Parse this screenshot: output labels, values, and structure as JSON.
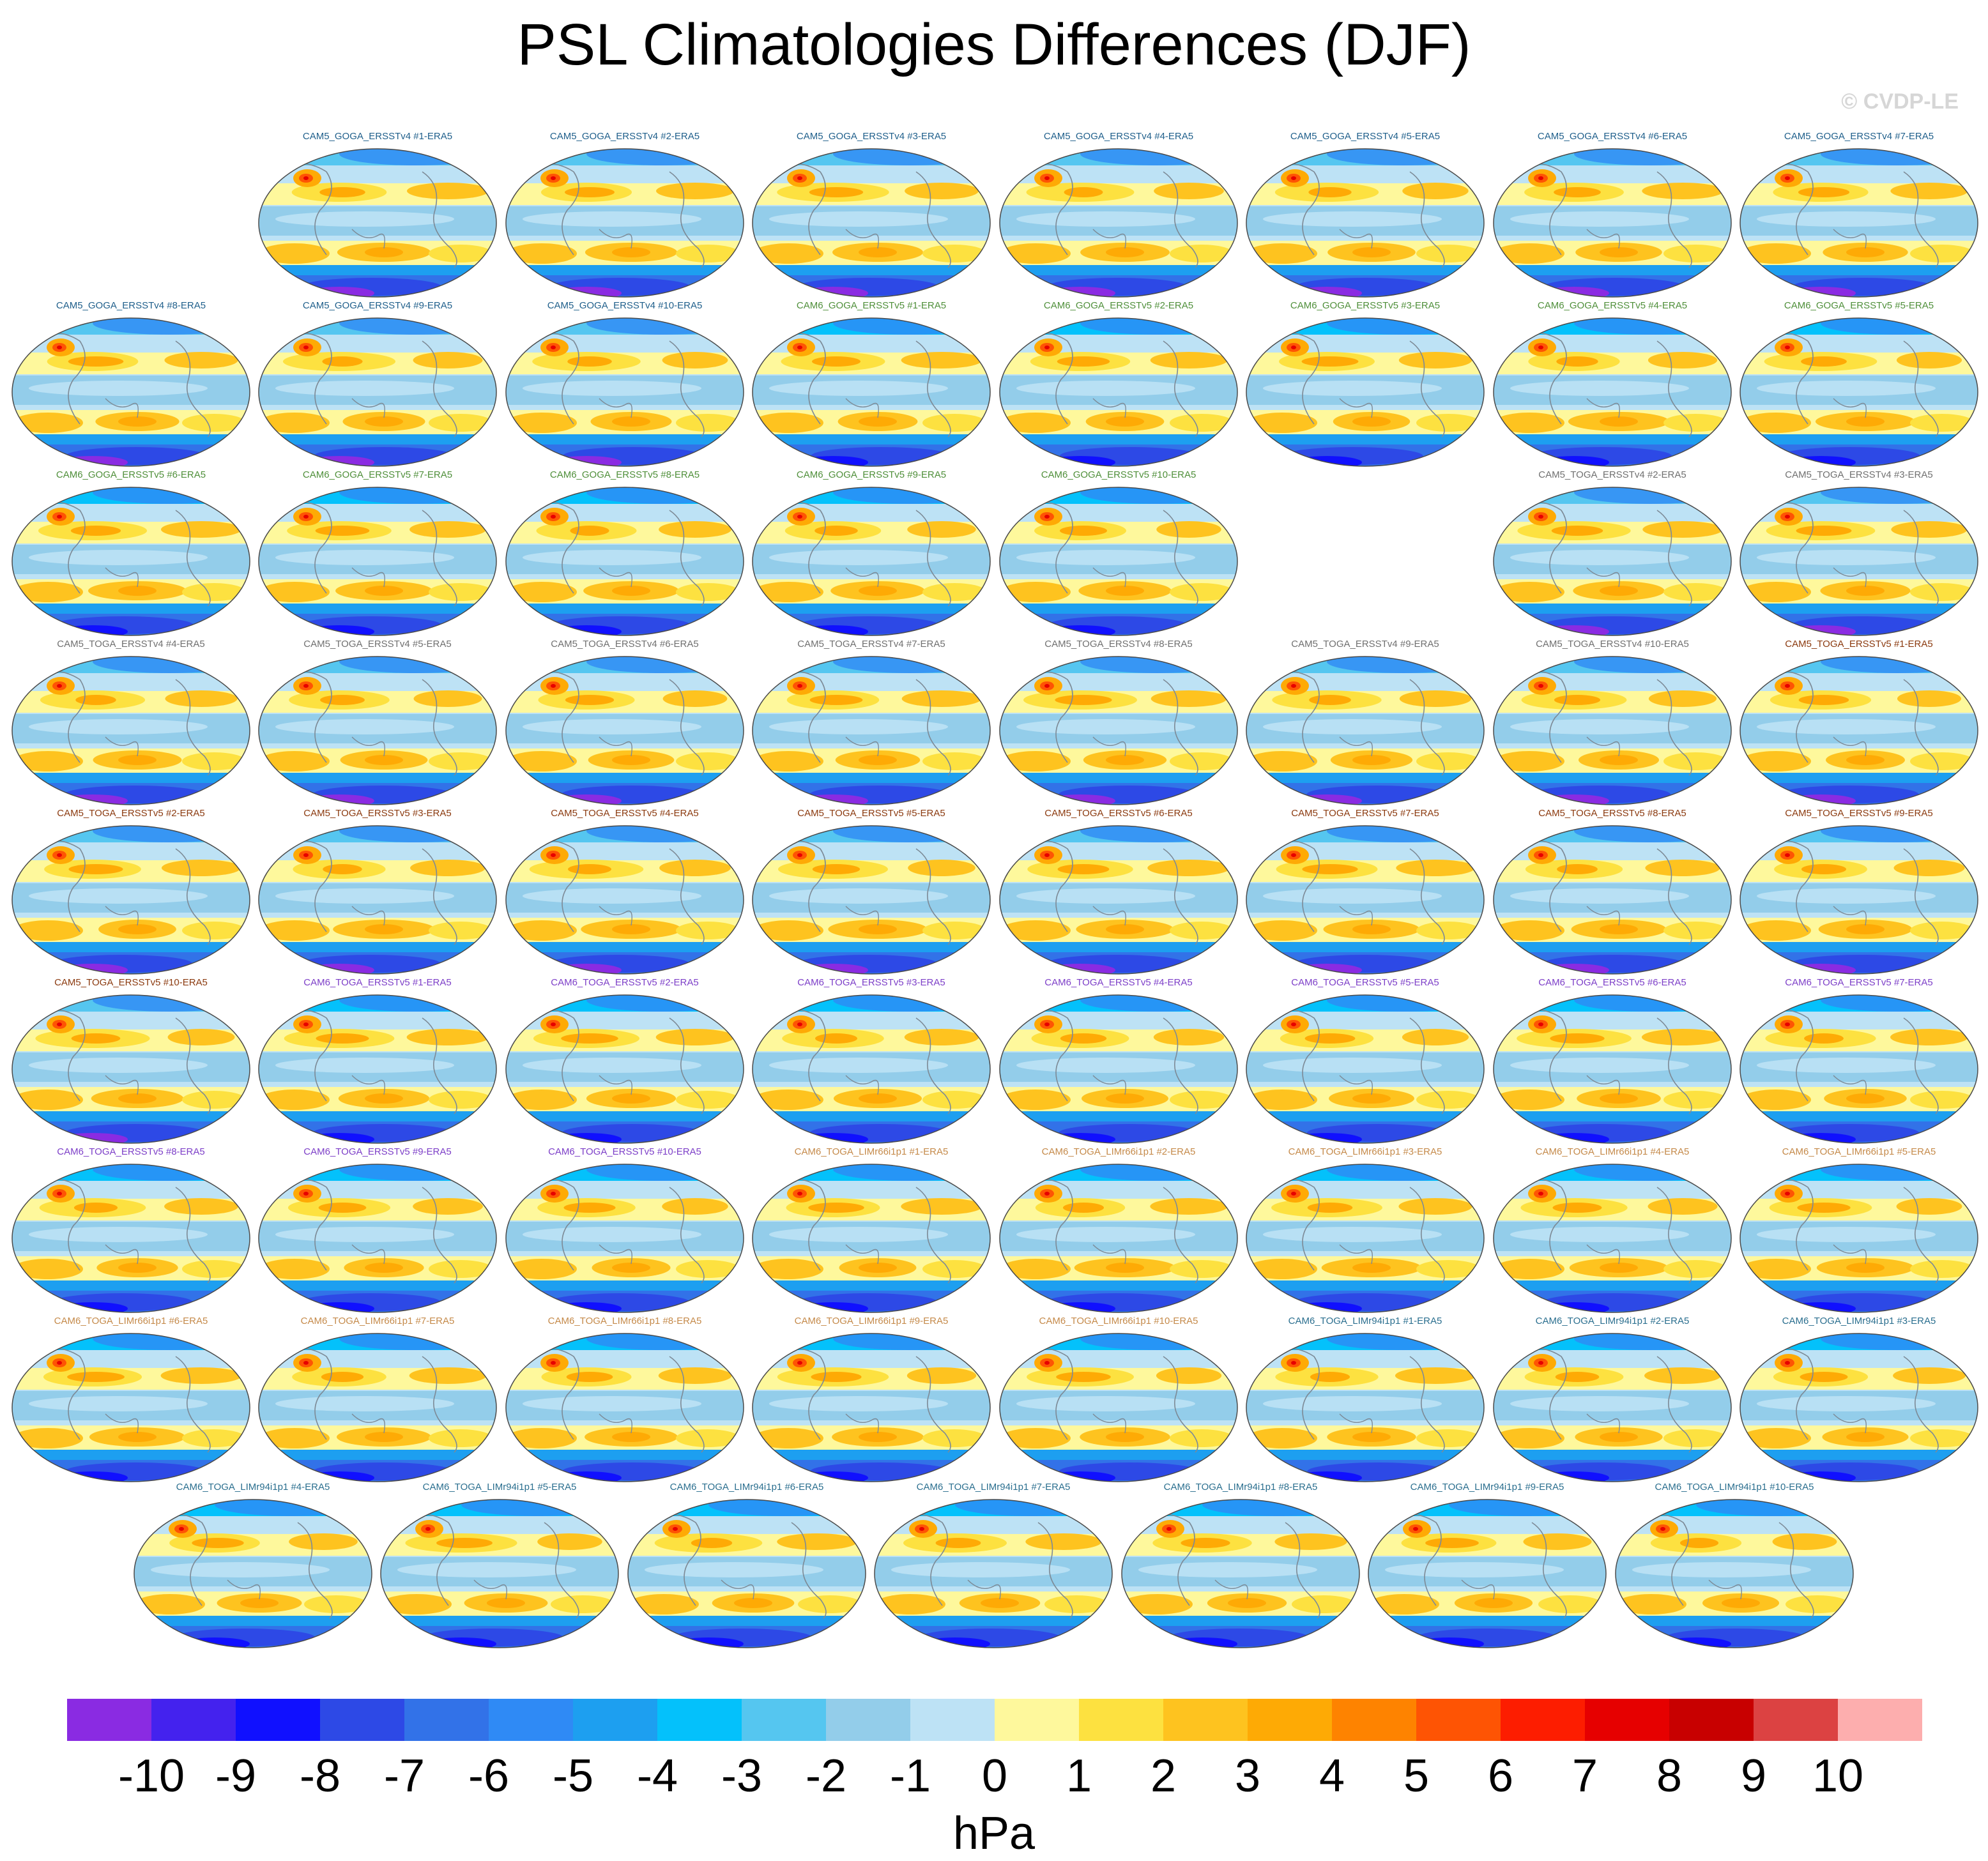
{
  "title": "PSL Climatologies Differences (DJF)",
  "watermark": "© CVDP-LE",
  "chart_data": {
    "type": "heatmap",
    "title": "PSL Climatologies Differences (DJF)",
    "units": "hPa",
    "colorbar": {
      "ticks": [
        "-10",
        "-9",
        "-8",
        "-7",
        "-6",
        "-5",
        "-4",
        "-3",
        "-2",
        "-1",
        "0",
        "1",
        "2",
        "3",
        "4",
        "5",
        "6",
        "7",
        "8",
        "9",
        "10"
      ],
      "colors": [
        "#8a2be2",
        "#4422ee",
        "#1010ff",
        "#2d49e6",
        "#3272e8",
        "#2f8af5",
        "#1d9ff0",
        "#04c1fb",
        "#55c6f0",
        "#93cdea",
        "#bde2f5",
        "#fef89c",
        "#fde140",
        "#fec31f",
        "#feaa05",
        "#fe8300",
        "#fe5404",
        "#fd1d00",
        "#e60000",
        "#c80000",
        "#dc4242",
        "#fdaeae"
      ]
    },
    "panels": [
      {
        "label": "CAM5_GOGA_ERSSTv4 #1-ERA5",
        "group": "c5g4"
      },
      {
        "label": "CAM5_GOGA_ERSSTv4 #2-ERA5",
        "group": "c5g4"
      },
      {
        "label": "CAM5_GOGA_ERSSTv4 #3-ERA5",
        "group": "c5g4"
      },
      {
        "label": "CAM5_GOGA_ERSSTv4 #4-ERA5",
        "group": "c5g4"
      },
      {
        "label": "CAM5_GOGA_ERSSTv4 #5-ERA5",
        "group": "c5g4"
      },
      {
        "label": "CAM5_GOGA_ERSSTv4 #6-ERA5",
        "group": "c5g4"
      },
      {
        "label": "CAM5_GOGA_ERSSTv4 #7-ERA5",
        "group": "c5g4"
      },
      {
        "label": "CAM5_GOGA_ERSSTv4 #8-ERA5",
        "group": "c5g4"
      },
      {
        "label": "CAM5_GOGA_ERSSTv4 #9-ERA5",
        "group": "c5g4"
      },
      {
        "label": "CAM5_GOGA_ERSSTv4 #10-ERA5",
        "group": "c5g4"
      },
      {
        "label": "CAM6_GOGA_ERSSTv5 #1-ERA5",
        "group": "c6g5"
      },
      {
        "label": "CAM6_GOGA_ERSSTv5 #2-ERA5",
        "group": "c6g5"
      },
      {
        "label": "CAM6_GOGA_ERSSTv5 #3-ERA5",
        "group": "c6g5"
      },
      {
        "label": "CAM6_GOGA_ERSSTv5 #4-ERA5",
        "group": "c6g5"
      },
      {
        "label": "CAM6_GOGA_ERSSTv5 #5-ERA5",
        "group": "c6g5"
      },
      {
        "label": "CAM6_GOGA_ERSSTv5 #6-ERA5",
        "group": "c6g5"
      },
      {
        "label": "CAM6_GOGA_ERSSTv5 #7-ERA5",
        "group": "c6g5"
      },
      {
        "label": "CAM6_GOGA_ERSSTv5 #8-ERA5",
        "group": "c6g5"
      },
      {
        "label": "CAM6_GOGA_ERSSTv5 #9-ERA5",
        "group": "c6g5"
      },
      {
        "label": "CAM6_GOGA_ERSSTv5 #10-ERA5",
        "group": "c6g5"
      },
      {
        "label": "CAM5_TOGA_ERSSTv4 #2-ERA5",
        "group": "c5t4"
      },
      {
        "label": "CAM5_TOGA_ERSSTv4 #3-ERA5",
        "group": "c5t4"
      },
      {
        "label": "CAM5_TOGA_ERSSTv4 #4-ERA5",
        "group": "c5t4"
      },
      {
        "label": "CAM5_TOGA_ERSSTv4 #5-ERA5",
        "group": "c5t4"
      },
      {
        "label": "CAM5_TOGA_ERSSTv4 #6-ERA5",
        "group": "c5t4"
      },
      {
        "label": "CAM5_TOGA_ERSSTv4 #7-ERA5",
        "group": "c5t4"
      },
      {
        "label": "CAM5_TOGA_ERSSTv4 #8-ERA5",
        "group": "c5t4"
      },
      {
        "label": "CAM5_TOGA_ERSSTv4 #9-ERA5",
        "group": "c5t4"
      },
      {
        "label": "CAM5_TOGA_ERSSTv4 #10-ERA5",
        "group": "c5t4"
      },
      {
        "label": "CAM5_TOGA_ERSSTv5 #1-ERA5",
        "group": "c5t5"
      },
      {
        "label": "CAM5_TOGA_ERSSTv5 #2-ERA5",
        "group": "c5t5"
      },
      {
        "label": "CAM5_TOGA_ERSSTv5 #3-ERA5",
        "group": "c5t5"
      },
      {
        "label": "CAM5_TOGA_ERSSTv5 #4-ERA5",
        "group": "c5t5"
      },
      {
        "label": "CAM5_TOGA_ERSSTv5 #5-ERA5",
        "group": "c5t5"
      },
      {
        "label": "CAM5_TOGA_ERSSTv5 #6-ERA5",
        "group": "c5t5"
      },
      {
        "label": "CAM5_TOGA_ERSSTv5 #7-ERA5",
        "group": "c5t5"
      },
      {
        "label": "CAM5_TOGA_ERSSTv5 #8-ERA5",
        "group": "c5t5"
      },
      {
        "label": "CAM5_TOGA_ERSSTv5 #9-ERA5",
        "group": "c5t5"
      },
      {
        "label": "CAM5_TOGA_ERSSTv5 #10-ERA5",
        "group": "c5t5"
      },
      {
        "label": "CAM6_TOGA_ERSSTv5 #1-ERA5",
        "group": "c6t5"
      },
      {
        "label": "CAM6_TOGA_ERSSTv5 #2-ERA5",
        "group": "c6t5"
      },
      {
        "label": "CAM6_TOGA_ERSSTv5 #3-ERA5",
        "group": "c6t5"
      },
      {
        "label": "CAM6_TOGA_ERSSTv5 #4-ERA5",
        "group": "c6t5"
      },
      {
        "label": "CAM6_TOGA_ERSSTv5 #5-ERA5",
        "group": "c6t5"
      },
      {
        "label": "CAM6_TOGA_ERSSTv5 #6-ERA5",
        "group": "c6t5"
      },
      {
        "label": "CAM6_TOGA_ERSSTv5 #7-ERA5",
        "group": "c6t5"
      },
      {
        "label": "CAM6_TOGA_ERSSTv5 #8-ERA5",
        "group": "c6t5"
      },
      {
        "label": "CAM6_TOGA_ERSSTv5 #9-ERA5",
        "group": "c6t5"
      },
      {
        "label": "CAM6_TOGA_ERSSTv5 #10-ERA5",
        "group": "c6t5"
      },
      {
        "label": "CAM6_TOGA_LIMr66i1p1 #1-ERA5",
        "group": "c6l66"
      },
      {
        "label": "CAM6_TOGA_LIMr66i1p1 #2-ERA5",
        "group": "c6l66"
      },
      {
        "label": "CAM6_TOGA_LIMr66i1p1 #3-ERA5",
        "group": "c6l66"
      },
      {
        "label": "CAM6_TOGA_LIMr66i1p1 #4-ERA5",
        "group": "c6l66"
      },
      {
        "label": "CAM6_TOGA_LIMr66i1p1 #5-ERA5",
        "group": "c6l66"
      },
      {
        "label": "CAM6_TOGA_LIMr66i1p1 #6-ERA5",
        "group": "c6l66"
      },
      {
        "label": "CAM6_TOGA_LIMr66i1p1 #7-ERA5",
        "group": "c6l66"
      },
      {
        "label": "CAM6_TOGA_LIMr66i1p1 #8-ERA5",
        "group": "c6l66"
      },
      {
        "label": "CAM6_TOGA_LIMr66i1p1 #9-ERA5",
        "group": "c6l66"
      },
      {
        "label": "CAM6_TOGA_LIMr66i1p1 #10-ERA5",
        "group": "c6l66"
      },
      {
        "label": "CAM6_TOGA_LIMr94i1p1 #1-ERA5",
        "group": "c6l94"
      },
      {
        "label": "CAM6_TOGA_LIMr94i1p1 #2-ERA5",
        "group": "c6l94"
      },
      {
        "label": "CAM6_TOGA_LIMr94i1p1 #3-ERA5",
        "group": "c6l94"
      },
      {
        "label": "CAM6_TOGA_LIMr94i1p1 #4-ERA5",
        "group": "c6l94"
      },
      {
        "label": "CAM6_TOGA_LIMr94i1p1 #5-ERA5",
        "group": "c6l94"
      },
      {
        "label": "CAM6_TOGA_LIMr94i1p1 #6-ERA5",
        "group": "c6l94"
      },
      {
        "label": "CAM6_TOGA_LIMr94i1p1 #7-ERA5",
        "group": "c6l94"
      },
      {
        "label": "CAM6_TOGA_LIMr94i1p1 #8-ERA5",
        "group": "c6l94"
      },
      {
        "label": "CAM6_TOGA_LIMr94i1p1 #9-ERA5",
        "group": "c6l94"
      },
      {
        "label": "CAM6_TOGA_LIMr94i1p1 #10-ERA5",
        "group": "c6l94"
      }
    ]
  },
  "label_colors": {
    "c5g4": "#1f5f8b",
    "c6g5": "#4f8f3a",
    "c5t4": "#707070",
    "c5t5": "#8b3a0f",
    "c6t5": "#7d3fc8",
    "c6l66": "#c58a4a",
    "c6l94": "#2b6f8f"
  }
}
